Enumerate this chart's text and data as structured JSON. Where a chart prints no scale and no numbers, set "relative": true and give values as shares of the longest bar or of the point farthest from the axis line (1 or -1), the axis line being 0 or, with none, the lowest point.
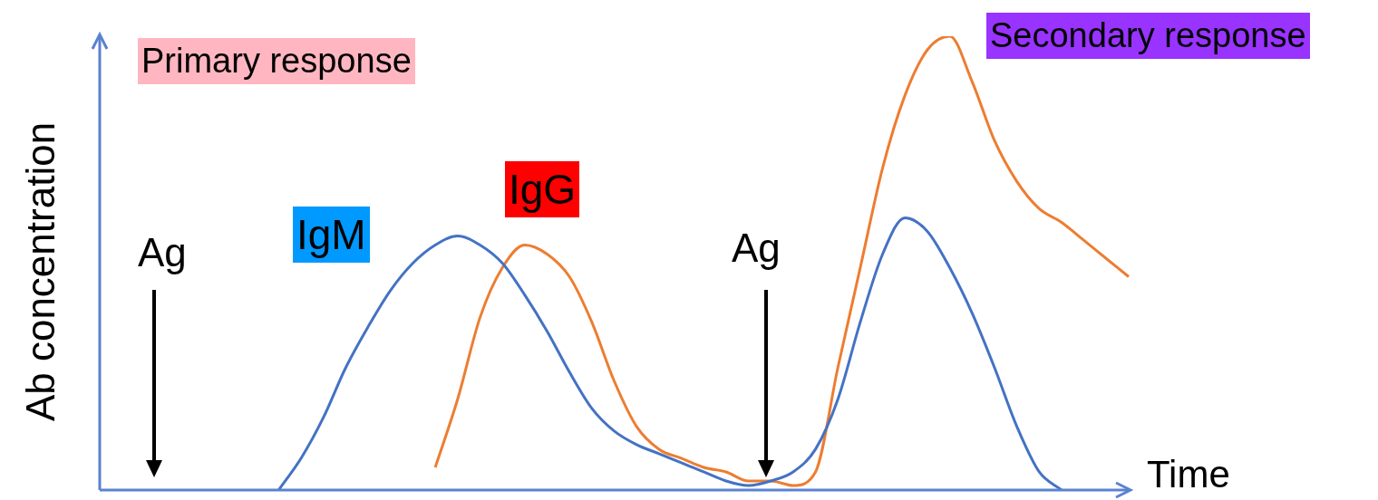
{
  "chart_data": {
    "type": "line",
    "relative": true,
    "xlabel": "Time",
    "ylabel": "Ab concentration",
    "annotations": [
      "Primary response",
      "Secondary response",
      "Ag",
      "Ag"
    ],
    "categories": [
      null,
      null,
      null,
      null,
      null,
      null,
      null,
      null,
      null,
      null,
      null,
      null,
      null,
      null,
      null,
      null,
      null,
      null,
      null,
      null,
      null,
      null,
      null,
      null,
      null,
      null,
      null,
      null,
      null,
      null,
      null,
      null,
      null,
      null,
      null,
      null,
      null,
      null,
      null,
      null,
      null,
      null,
      null,
      null,
      null,
      null,
      null
    ],
    "series": [
      {
        "name": "IgM",
        "color": "#4472c4",
        "values": [
          null,
          null,
          null,
          null,
          null,
          null,
          null,
          null,
          0,
          0.07,
          0.16,
          0.27,
          0.36,
          0.44,
          0.5,
          0.54,
          0.56,
          0.54,
          0.5,
          0.43,
          0.35,
          0.26,
          0.18,
          0.13,
          0.1,
          0.08,
          0.06,
          0.04,
          0.02,
          0.01,
          0.02,
          0.04,
          0.09,
          0.2,
          0.37,
          0.52,
          0.6,
          0.57,
          0.49,
          0.39,
          0.27,
          0.14,
          0.04,
          0,
          null,
          null,
          null
        ]
      },
      {
        "name": "IgG",
        "color": "#ed7d31",
        "values": [
          null,
          null,
          null,
          null,
          null,
          null,
          null,
          null,
          null,
          null,
          null,
          null,
          null,
          null,
          null,
          0.05,
          0.2,
          0.38,
          0.49,
          0.54,
          0.52,
          0.47,
          0.37,
          0.24,
          0.14,
          0.09,
          0.07,
          0.05,
          0.04,
          0.02,
          0.02,
          0.01,
          0.04,
          0.27,
          0.49,
          0.71,
          0.87,
          0.97,
          1,
          0.9,
          0.77,
          0.68,
          0.62,
          0.59,
          0.55,
          0.51,
          0.47
        ]
      }
    ]
  }
}
